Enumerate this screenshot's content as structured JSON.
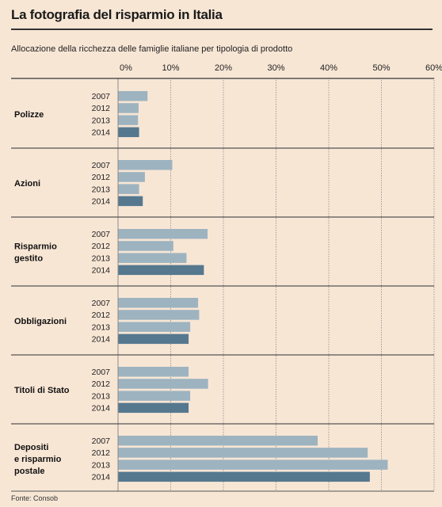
{
  "title": "La fotografia del risparmio in Italia",
  "subtitle": "Allocazione della ricchezza delle famiglie italiane per tipologia di prodotto",
  "source": "Fonte: Consob",
  "colors": {
    "background": "#f8e6d5",
    "bar_past": "#9db3c0",
    "bar_latest": "#55788f",
    "grid": "#8a8a8a",
    "rule": "#555555"
  },
  "chart_data": {
    "type": "bar",
    "orientation": "horizontal",
    "title": "La fotografia del risparmio in Italia",
    "subtitle": "Allocazione della ricchezza delle famiglie italiane per tipologia di prodotto",
    "unit": "%",
    "xlim": [
      0,
      60
    ],
    "ticks": [
      "0%",
      "10%",
      "20%",
      "30%",
      "40%",
      "50%",
      "60%"
    ],
    "grid": true,
    "years": [
      "2007",
      "2012",
      "2013",
      "2014"
    ],
    "categories": [
      {
        "label_lines": [
          "Polizze"
        ],
        "values": [
          5.6,
          3.9,
          3.8,
          4.0
        ]
      },
      {
        "label_lines": [
          "Azioni"
        ],
        "values": [
          10.3,
          5.1,
          4.0,
          4.7
        ]
      },
      {
        "label_lines": [
          "Risparmio",
          "gestito"
        ],
        "values": [
          17.0,
          10.5,
          13.0,
          16.3
        ]
      },
      {
        "label_lines": [
          "Obbligazioni"
        ],
        "values": [
          15.2,
          15.4,
          13.7,
          13.4
        ]
      },
      {
        "label_lines": [
          "Titoli di Stato"
        ],
        "values": [
          13.4,
          17.1,
          13.7,
          13.4
        ]
      },
      {
        "label_lines": [
          "Depositi",
          "e risparmio",
          "postale"
        ],
        "values": [
          37.9,
          47.4,
          51.2,
          47.8
        ]
      }
    ]
  }
}
